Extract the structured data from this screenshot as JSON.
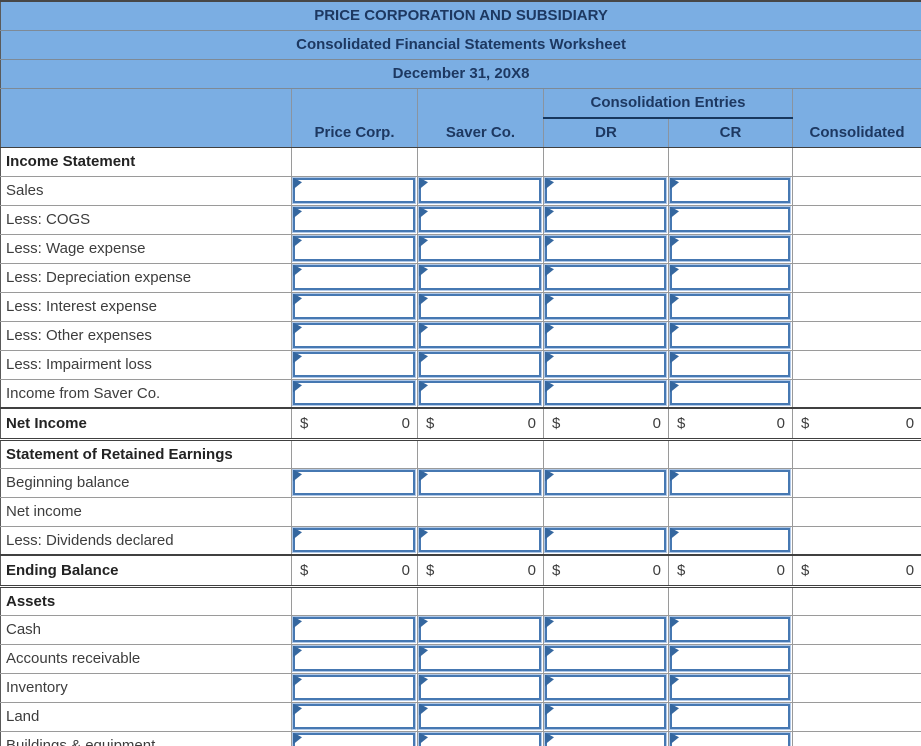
{
  "titles": [
    "PRICE CORPORATION AND SUBSIDIARY",
    "Consolidated Financial Statements Worksheet",
    "December 31, 20X8"
  ],
  "columns": {
    "entries_group_label": "Consolidation Entries",
    "headers": [
      "Price Corp.",
      "Saver Co.",
      "DR",
      "CR",
      "Consolidated"
    ]
  },
  "colors": {
    "header_bg": "#7BAEE3",
    "header_text": "#1D3861",
    "entries_underline": "#17375E",
    "input_border": "#4678B2",
    "input_flag": "#35679F",
    "grid_line": "#9A9A9A",
    "strong_line": "#404040"
  },
  "rows": [
    {
      "label": "Income Statement",
      "type": "section"
    },
    {
      "label": "Sales",
      "type": "input"
    },
    {
      "label": "Less: COGS",
      "type": "input"
    },
    {
      "label": "Less: Wage expense",
      "type": "input"
    },
    {
      "label": "Less: Depreciation expense",
      "type": "input"
    },
    {
      "label": "Less: Interest expense",
      "type": "input"
    },
    {
      "label": "Less: Other expenses",
      "type": "input"
    },
    {
      "label": "Less: Impairment loss",
      "type": "input"
    },
    {
      "label": "Income from Saver Co.",
      "type": "input"
    },
    {
      "label": "Net Income",
      "type": "total",
      "currency": "$",
      "amounts": [
        "0",
        "0",
        "0",
        "0",
        "0"
      ]
    },
    {
      "label": "Statement of Retained Earnings",
      "type": "section"
    },
    {
      "label": "Beginning balance",
      "type": "input"
    },
    {
      "label": "Net income",
      "type": "plain"
    },
    {
      "label": "Less: Dividends declared",
      "type": "input"
    },
    {
      "label": "Ending Balance",
      "type": "total",
      "currency": "$",
      "amounts": [
        "0",
        "0",
        "0",
        "0",
        "0"
      ]
    },
    {
      "label": "Assets",
      "type": "section"
    },
    {
      "label": "Cash",
      "type": "input"
    },
    {
      "label": "Accounts receivable",
      "type": "input"
    },
    {
      "label": "Inventory",
      "type": "input"
    },
    {
      "label": "Land",
      "type": "input"
    },
    {
      "label": "Buildings & equipment",
      "type": "input"
    }
  ]
}
